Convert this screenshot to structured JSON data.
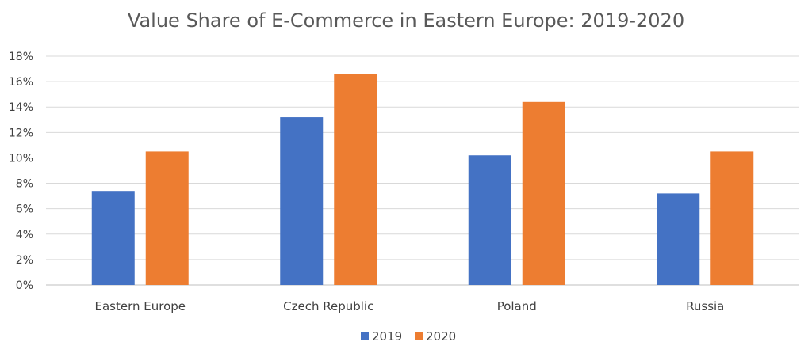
{
  "chart_data": {
    "type": "bar",
    "title": "Value Share of E-Commerce in Eastern Europe: 2019-2020",
    "xlabel": "",
    "ylabel": "",
    "categories": [
      "Eastern Europe",
      "Czech Republic",
      "Poland",
      "Russia"
    ],
    "series": [
      {
        "name": "2019",
        "color": "#4472c4",
        "values": [
          7.4,
          13.2,
          10.2,
          7.2
        ]
      },
      {
        "name": "2020",
        "color": "#ed7d31",
        "values": [
          10.5,
          16.6,
          14.4,
          10.5
        ]
      }
    ],
    "ylim": [
      0,
      18
    ],
    "yticks": [
      "0%",
      "2%",
      "4%",
      "6%",
      "8%",
      "10%",
      "12%",
      "14%",
      "16%",
      "18%"
    ],
    "grid": true,
    "legend": "bottom"
  }
}
